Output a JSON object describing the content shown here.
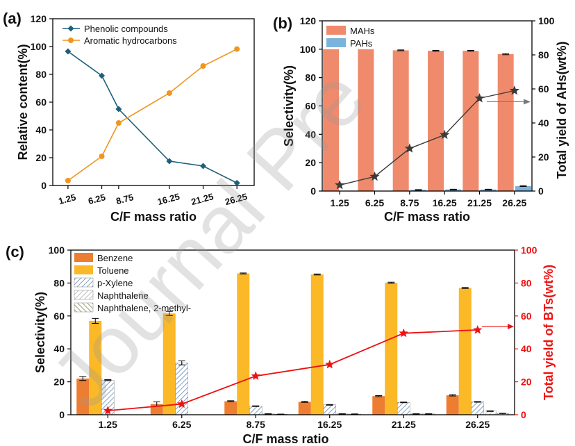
{
  "watermark": "Journal Pre",
  "colors": {
    "phenolic": "#1e5f7a",
    "aromatic": "#f0951f",
    "mahs": "#f08a6c",
    "pahs": "#7bb3dc",
    "yield_b": "#3a3a3a",
    "benzene": "#ed7d31",
    "toluene": "#fbb827",
    "pxylene": "#7f9fbf",
    "naphthalene": "#e2e2e2",
    "methylnaph": "#9a9a73",
    "yield_c": "#ee1111"
  },
  "chart_data": [
    {
      "id": "a",
      "panel_label": "(a)",
      "type": "line",
      "xlabel": "C/F mass ratio",
      "ylabel": "Relative content(%)",
      "ylim": [
        0,
        120
      ],
      "yticks": [
        0,
        20,
        40,
        60,
        80,
        100,
        120
      ],
      "x": [
        1.25,
        6.25,
        8.75,
        16.25,
        21.25,
        26.25
      ],
      "x_tick_labels": [
        "1.25",
        "6.25",
        "8.75",
        "16.25",
        "21.25",
        "26.25"
      ],
      "legend_position": "top-left",
      "series": [
        {
          "name": "Phenolic compounds",
          "marker": "diamond",
          "values": [
            96.5,
            79,
            55,
            17.5,
            14,
            1.8
          ]
        },
        {
          "name": "Aromatic hydrocarbons",
          "marker": "circle",
          "values": [
            3.5,
            21,
            45,
            66.5,
            86,
            98.2
          ]
        }
      ]
    },
    {
      "id": "b",
      "panel_label": "(b)",
      "type": "bar",
      "xlabel": "C/F mass ratio",
      "ylabel": "Selectivity(%)",
      "y2label": "Total yield of AHs(wt%)",
      "ylim": [
        0,
        120
      ],
      "yticks": [
        0,
        20,
        40,
        60,
        80,
        100,
        120
      ],
      "y2lim": [
        0,
        100
      ],
      "y2ticks": [
        0,
        20,
        40,
        60,
        80,
        100
      ],
      "categories": [
        "1.25",
        "6.25",
        "8.75",
        "16.25",
        "21.25",
        "26.25"
      ],
      "legend_position": "top-left",
      "series": [
        {
          "name": "MAHs",
          "values": [
            100,
            100,
            99.2,
            98.9,
            98.9,
            96.5
          ],
          "errors": [
            0,
            0,
            0.3,
            0.3,
            0.3,
            0.4
          ]
        },
        {
          "name": "PAHs",
          "values": [
            0,
            0,
            0.8,
            1.1,
            1.1,
            3.5
          ],
          "errors": [
            0,
            0,
            0.2,
            0.2,
            0.2,
            0.3
          ]
        }
      ],
      "line": {
        "name": "Total yield of AHs",
        "axis": "right",
        "marker": "star",
        "values": [
          3.5,
          8.5,
          25,
          33,
          54.5,
          59
        ]
      }
    },
    {
      "id": "c",
      "panel_label": "(c)",
      "type": "bar",
      "xlabel": "C/F mass ratio",
      "ylabel": "Selectivity(%)",
      "y2label": "Total yield of BTs(wt%)",
      "ylim": [
        0,
        100
      ],
      "yticks": [
        0,
        20,
        40,
        60,
        80,
        100
      ],
      "y2lim": [
        0,
        100
      ],
      "y2ticks": [
        0,
        20,
        40,
        60,
        80,
        100
      ],
      "categories": [
        "1.25",
        "6.25",
        "8.75",
        "16.25",
        "21.25",
        "26.25"
      ],
      "legend_position": "top-left",
      "series": [
        {
          "name": "Benzene",
          "values": [
            22,
            6.5,
            8.2,
            7.8,
            11.3,
            11.8
          ],
          "errors": [
            1.2,
            1.3,
            0.3,
            0.3,
            0.3,
            0.4
          ]
        },
        {
          "name": "Toluene",
          "values": [
            57,
            61.5,
            85.8,
            85.2,
            80.2,
            77
          ],
          "errors": [
            1.5,
            1.3,
            0.3,
            0.3,
            0.3,
            0.3
          ]
        },
        {
          "name": "p-Xylene",
          "values": [
            21,
            31.5,
            5.2,
            6,
            7.5,
            7.8
          ],
          "errors": [
            0.3,
            1.2,
            0.2,
            0.2,
            0.2,
            0.2
          ]
        },
        {
          "name": "Naphthalene",
          "values": [
            0,
            0,
            0.5,
            0.5,
            0.5,
            2.2
          ],
          "errors": [
            0,
            0,
            0.1,
            0.1,
            0.1,
            0.2
          ]
        },
        {
          "name": "Naphthalene, 2-methyl-",
          "values": [
            0,
            0,
            0.3,
            0.4,
            0.5,
            0.8
          ],
          "errors": [
            0,
            0,
            0.1,
            0.1,
            0.1,
            0.1
          ]
        }
      ],
      "line": {
        "name": "Total yield of BTs",
        "axis": "right",
        "marker": "star",
        "values": [
          2.5,
          6.5,
          23.5,
          30.5,
          49.5,
          51.5
        ]
      }
    }
  ]
}
